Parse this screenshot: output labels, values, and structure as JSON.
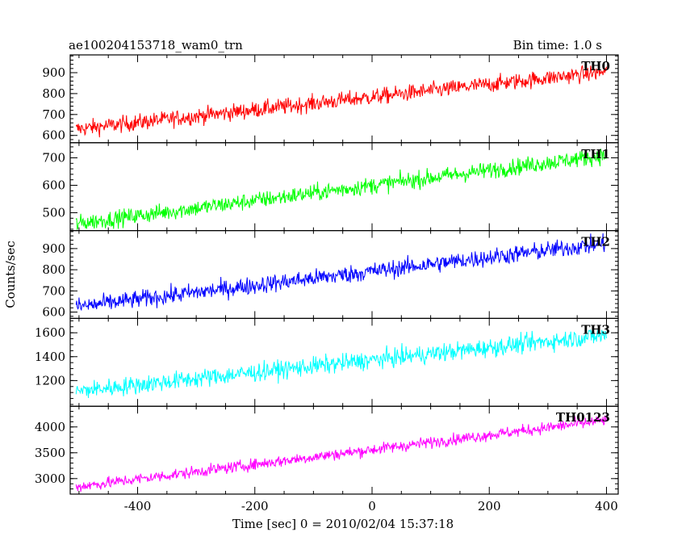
{
  "header": {
    "left_label": "ae100204153718_wam0_trn",
    "right_label": "Bin time: 1.0 s"
  },
  "chart_data": {
    "type": "line",
    "xlabel": "Time [sec] 0 = 2010/02/04 15:37:18",
    "ylabel": "Counts/sec",
    "xlim": [
      -515,
      420
    ],
    "xticks": [
      -400,
      -200,
      0,
      200,
      400
    ],
    "grid": false,
    "series": [
      {
        "name": "TH0",
        "color": "#ff0000",
        "ylim": [
          565,
          985
        ],
        "yticks": [
          600,
          700,
          800,
          900
        ],
        "start": 630,
        "end": 905,
        "noise": 28
      },
      {
        "name": "TH1",
        "color": "#00ff00",
        "ylim": [
          435,
          755
        ],
        "yticks": [
          500,
          600,
          700
        ],
        "start": 460,
        "end": 710,
        "noise": 22
      },
      {
        "name": "TH2",
        "color": "#0000ff",
        "ylim": [
          570,
          985
        ],
        "yticks": [
          600,
          700,
          800,
          900
        ],
        "start": 625,
        "end": 925,
        "noise": 30
      },
      {
        "name": "TH3",
        "color": "#00ffff",
        "ylim": [
          985,
          1720
        ],
        "yticks": [
          1200,
          1400,
          1600
        ],
        "start": 1110,
        "end": 1580,
        "noise": 55
      },
      {
        "name": "TH0123",
        "color": "#ff00ff",
        "ylim": [
          2700,
          4400
        ],
        "yticks": [
          3000,
          3500,
          4000
        ],
        "start": 2840,
        "end": 4130,
        "noise": 80
      }
    ]
  }
}
